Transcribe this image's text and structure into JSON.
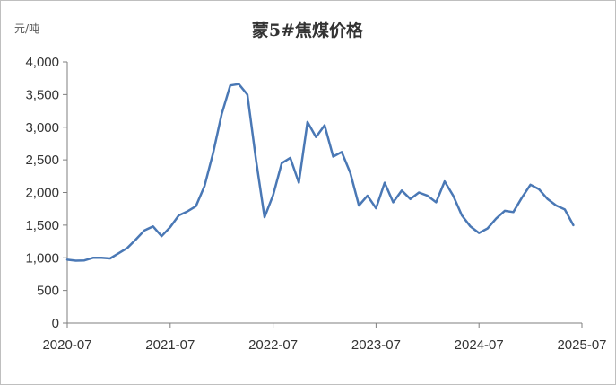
{
  "chart_data": {
    "type": "line",
    "title": "蒙5#焦煤价格",
    "y_unit_label": "元/吨",
    "ylim": [
      0,
      4000
    ],
    "yticks": [
      0,
      500,
      1000,
      1500,
      2000,
      2500,
      3000,
      3500,
      4000
    ],
    "ytick_labels": [
      "0",
      "500",
      "1,000",
      "1,500",
      "2,000",
      "2,500",
      "3,000",
      "3,500",
      "4,000"
    ],
    "xticks": [
      "2020-07",
      "2021-07",
      "2022-07",
      "2023-07",
      "2024-07",
      "2025-07"
    ],
    "xlim": [
      "2020-07",
      "2025-07"
    ],
    "grid": false,
    "series_color": "#4a78b5",
    "series": [
      {
        "points": [
          [
            "2020-07",
            970
          ],
          [
            "2020-08",
            955
          ],
          [
            "2020-09",
            960
          ],
          [
            "2020-10",
            1000
          ],
          [
            "2020-11",
            1000
          ],
          [
            "2020-12",
            990
          ],
          [
            "2021-01",
            1070
          ],
          [
            "2021-02",
            1150
          ],
          [
            "2021-03",
            1280
          ],
          [
            "2021-04",
            1420
          ],
          [
            "2021-05",
            1480
          ],
          [
            "2021-06",
            1330
          ],
          [
            "2021-07",
            1470
          ],
          [
            "2021-08",
            1650
          ],
          [
            "2021-09",
            1710
          ],
          [
            "2021-10",
            1790
          ],
          [
            "2021-11",
            2100
          ],
          [
            "2021-12",
            2600
          ],
          [
            "2022-01",
            3200
          ],
          [
            "2022-02",
            3640
          ],
          [
            "2022-03",
            3660
          ],
          [
            "2022-04",
            3500
          ],
          [
            "2022-05",
            2500
          ],
          [
            "2022-06",
            1620
          ],
          [
            "2022-07",
            1960
          ],
          [
            "2022-08",
            2450
          ],
          [
            "2022-09",
            2530
          ],
          [
            "2022-10",
            2150
          ],
          [
            "2022-11",
            3080
          ],
          [
            "2022-12",
            2850
          ],
          [
            "2023-01",
            3030
          ],
          [
            "2023-02",
            2550
          ],
          [
            "2023-03",
            2620
          ],
          [
            "2023-04",
            2300
          ],
          [
            "2023-05",
            1800
          ],
          [
            "2023-06",
            1950
          ],
          [
            "2023-07",
            1760
          ],
          [
            "2023-08",
            2150
          ],
          [
            "2023-09",
            1850
          ],
          [
            "2023-10",
            2030
          ],
          [
            "2023-11",
            1900
          ],
          [
            "2023-12",
            2000
          ],
          [
            "2024-01",
            1950
          ],
          [
            "2024-02",
            1850
          ],
          [
            "2024-03",
            2170
          ],
          [
            "2024-04",
            1950
          ],
          [
            "2024-05",
            1650
          ],
          [
            "2024-06",
            1480
          ],
          [
            "2024-07",
            1380
          ],
          [
            "2024-08",
            1450
          ],
          [
            "2024-09",
            1600
          ],
          [
            "2024-10",
            1720
          ],
          [
            "2024-11",
            1700
          ],
          [
            "2024-12",
            1920
          ],
          [
            "2025-01",
            2120
          ],
          [
            "2025-02",
            2050
          ],
          [
            "2025-03",
            1900
          ],
          [
            "2025-04",
            1800
          ],
          [
            "2025-05",
            1740
          ],
          [
            "2025-06",
            1500
          ]
        ]
      }
    ]
  }
}
